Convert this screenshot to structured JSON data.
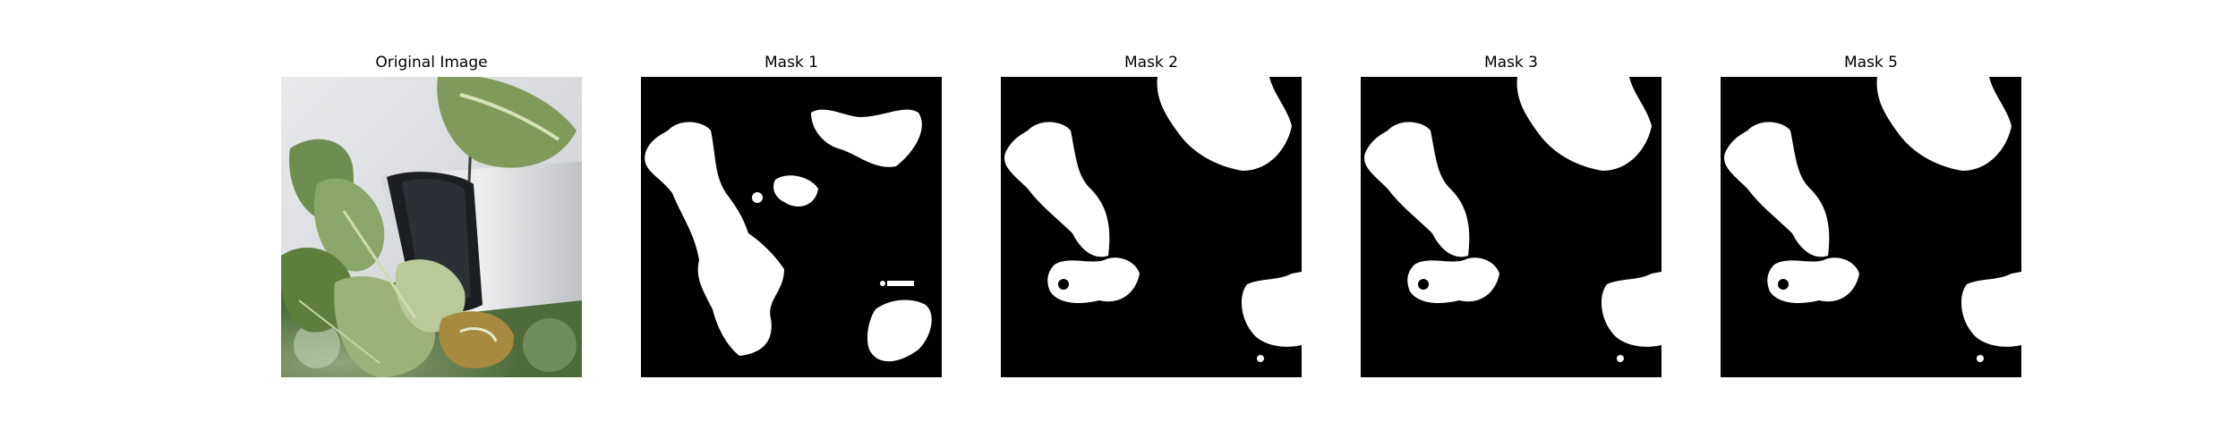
{
  "figure": {
    "panels": [
      {
        "title": "Original Image"
      },
      {
        "title": "Mask 1"
      },
      {
        "title": "Mask 2"
      },
      {
        "title": "Mask 3"
      },
      {
        "title": "Mask 5"
      }
    ]
  },
  "colors": {
    "mask_background": "#000000",
    "mask_foreground": "#ffffff"
  }
}
